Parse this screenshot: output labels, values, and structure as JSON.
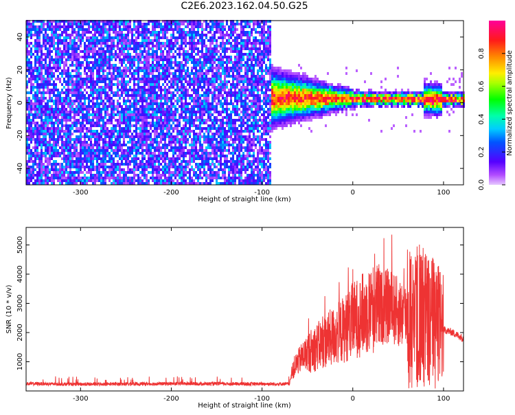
{
  "title": "C2E6.2023.162.04.50.G25",
  "chart_data": [
    {
      "type": "heatmap",
      "title": "C2E6.2023.162.04.50.G25",
      "xlabel": "Height of straight line (km)",
      "ylabel": "Frequency (Hz)",
      "xlim": [
        -360,
        122
      ],
      "ylim": [
        -50,
        50
      ],
      "xticks": [
        -300,
        -200,
        -100,
        0,
        100
      ],
      "yticks": [
        -40,
        -20,
        0,
        20,
        40
      ],
      "colorbar": {
        "label": "Normalized spectral amplitude",
        "range": [
          0,
          1
        ],
        "ticks": [
          "0.0",
          "0.2",
          "0.4",
          "0.6",
          "0.8"
        ],
        "colormap": "gist_rainbow"
      },
      "regions": [
        {
          "x_range": [
            -360,
            -90
          ],
          "frequency_range": [
            -50,
            50
          ],
          "amplitude_range": [
            0.05,
            0.35
          ]
        },
        {
          "x_range": [
            -90,
            122
          ],
          "frequency_center": [
            2,
            1
          ],
          "frequency_spread": [
            8,
            2
          ],
          "amplitude_peak": 1.0
        }
      ]
    },
    {
      "type": "line",
      "xlabel": "Height of straight line (km)",
      "ylabel": "SNR (10 * v/v)",
      "xlim": [
        -360,
        122
      ],
      "ylim": [
        0,
        5600
      ],
      "xticks": [
        -300,
        -200,
        -100,
        0,
        100
      ],
      "yticks": [
        1000,
        2000,
        3000,
        4000,
        5000
      ],
      "color": "#ee3333",
      "series": [
        {
          "x": [
            -360,
            -300,
            -200,
            -100,
            -70,
            -65,
            -55,
            -40,
            -30,
            -20,
            -10,
            0,
            10,
            20,
            30,
            40,
            50,
            60,
            70,
            80,
            90,
            100,
            110,
            122
          ],
          "y": [
            250,
            230,
            250,
            240,
            240,
            800,
            1200,
            1500,
            1700,
            1900,
            2100,
            2400,
            2600,
            2800,
            2850,
            2900,
            2700,
            2600,
            2500,
            2550,
            2400,
            2100,
            2000,
            1800
          ]
        }
      ]
    }
  ]
}
